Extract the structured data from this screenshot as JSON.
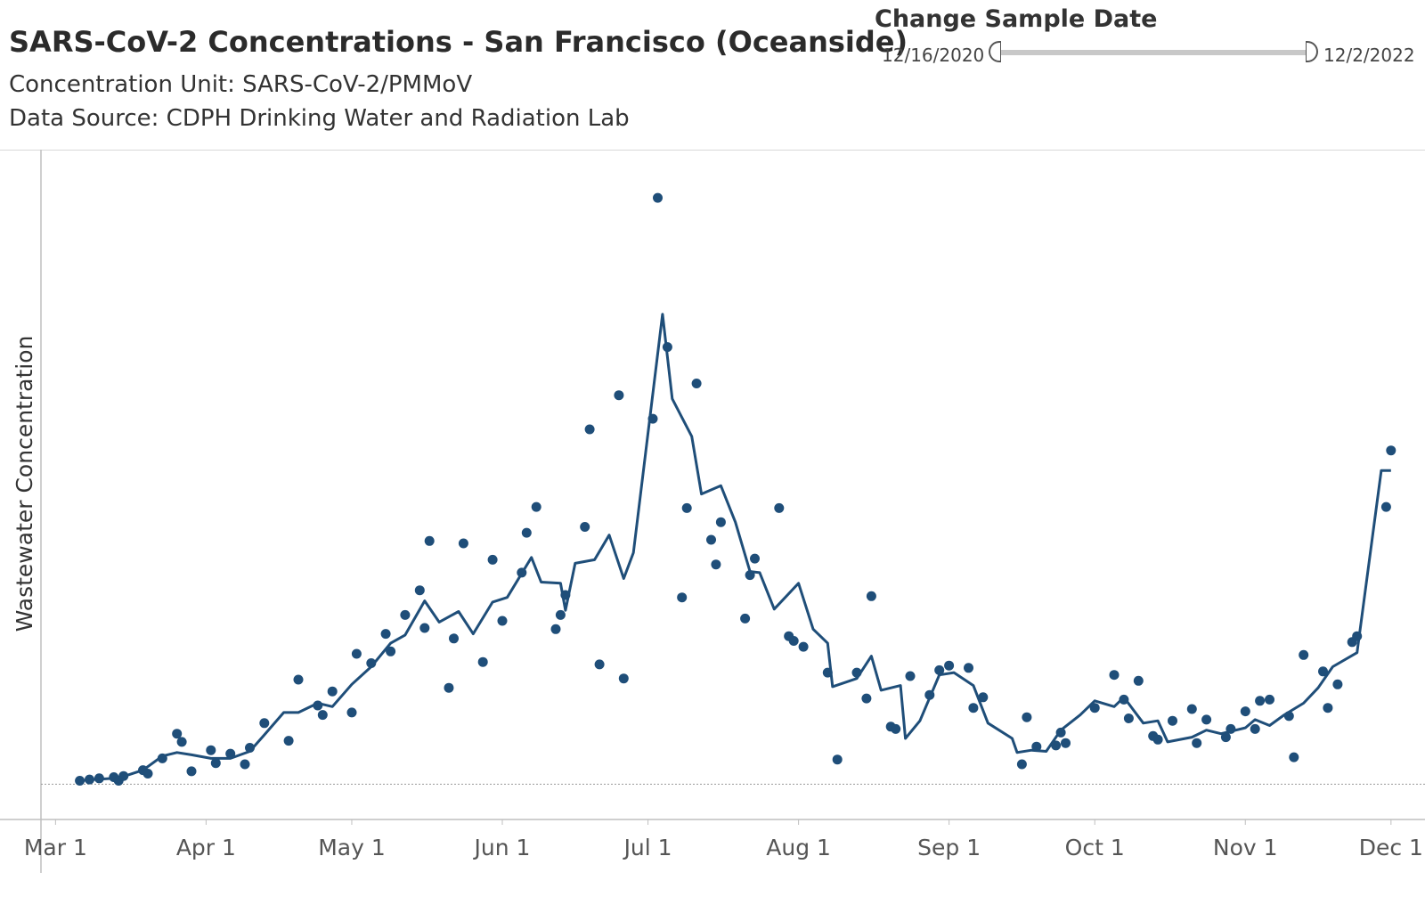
{
  "header": {
    "title": "SARS-CoV-2 Concentrations - San Francisco (Oceanside)",
    "concentration_unit": "Concentration Unit:  SARS-CoV-2/PMMoV",
    "data_source": "Data Source: CDPH Drinking Water and Radiation Lab"
  },
  "date_filter": {
    "label": "Change Sample Date",
    "start": "12/16/2020",
    "end": "12/2/2022"
  },
  "colors": {
    "series": "#1f4e79",
    "axis": "#bfbfbf",
    "baseline": "#9a9a9a"
  },
  "chart_data": {
    "type": "scatter",
    "title": "",
    "xlabel": "",
    "ylabel": "Wastewater Concentration",
    "x_ticks": [
      "Mar 1",
      "Apr 1",
      "May 1",
      "Jun 1",
      "Jul 1",
      "Aug 1",
      "Sep 1",
      "Oct 1",
      "Nov 1",
      "Dec 1"
    ],
    "x_tick_dates": [
      "2022-03-01",
      "2022-04-01",
      "2022-05-01",
      "2022-06-01",
      "2022-07-01",
      "2022-08-01",
      "2022-09-01",
      "2022-10-01",
      "2022-11-01",
      "2022-12-01"
    ],
    "xlim": [
      "2022-02-26",
      "2022-12-08"
    ],
    "ylim": [
      -0.03,
      0.54
    ],
    "y_tick_labels_shown": false,
    "grid": false,
    "series": [
      {
        "kind": "points",
        "points": [
          [
            "2022-03-06",
            0.003
          ],
          [
            "2022-03-08",
            0.004
          ],
          [
            "2022-03-10",
            0.005
          ],
          [
            "2022-03-13",
            0.006
          ],
          [
            "2022-03-14",
            0.003
          ],
          [
            "2022-03-15",
            0.007
          ],
          [
            "2022-03-19",
            0.012
          ],
          [
            "2022-03-20",
            0.009
          ],
          [
            "2022-03-23",
            0.022
          ],
          [
            "2022-03-26",
            0.043
          ],
          [
            "2022-03-27",
            0.036
          ],
          [
            "2022-03-29",
            0.011
          ],
          [
            "2022-04-02",
            0.029
          ],
          [
            "2022-04-03",
            0.018
          ],
          [
            "2022-04-06",
            0.026
          ],
          [
            "2022-04-09",
            0.017
          ],
          [
            "2022-04-10",
            0.031
          ],
          [
            "2022-04-13",
            0.052
          ],
          [
            "2022-04-18",
            0.037
          ],
          [
            "2022-04-20",
            0.089
          ],
          [
            "2022-04-24",
            0.067
          ],
          [
            "2022-04-25",
            0.059
          ],
          [
            "2022-04-27",
            0.079
          ],
          [
            "2022-05-01",
            0.061
          ],
          [
            "2022-05-02",
            0.111
          ],
          [
            "2022-05-05",
            0.103
          ],
          [
            "2022-05-08",
            0.128
          ],
          [
            "2022-05-09",
            0.113
          ],
          [
            "2022-05-12",
            0.144
          ],
          [
            "2022-05-15",
            0.165
          ],
          [
            "2022-05-16",
            0.133
          ],
          [
            "2022-05-17",
            0.207
          ],
          [
            "2022-05-21",
            0.082
          ],
          [
            "2022-05-22",
            0.124
          ],
          [
            "2022-05-24",
            0.205
          ],
          [
            "2022-05-28",
            0.104
          ],
          [
            "2022-05-30",
            0.191
          ],
          [
            "2022-06-01",
            0.139
          ],
          [
            "2022-06-05",
            0.18
          ],
          [
            "2022-06-06",
            0.214
          ],
          [
            "2022-06-08",
            0.236
          ],
          [
            "2022-06-12",
            0.132
          ],
          [
            "2022-06-13",
            0.144
          ],
          [
            "2022-06-14",
            0.161
          ],
          [
            "2022-06-18",
            0.219
          ],
          [
            "2022-06-19",
            0.302
          ],
          [
            "2022-06-21",
            0.102
          ],
          [
            "2022-06-25",
            0.331
          ],
          [
            "2022-06-26",
            0.09
          ],
          [
            "2022-07-02",
            0.311
          ],
          [
            "2022-07-03",
            0.499
          ],
          [
            "2022-07-05",
            0.372
          ],
          [
            "2022-07-08",
            0.159
          ],
          [
            "2022-07-09",
            0.235
          ],
          [
            "2022-07-11",
            0.341
          ],
          [
            "2022-07-14",
            0.208
          ],
          [
            "2022-07-15",
            0.187
          ],
          [
            "2022-07-16",
            0.223
          ],
          [
            "2022-07-21",
            0.141
          ],
          [
            "2022-07-22",
            0.178
          ],
          [
            "2022-07-23",
            0.192
          ],
          [
            "2022-07-28",
            0.235
          ],
          [
            "2022-07-30",
            0.126
          ],
          [
            "2022-07-31",
            0.122
          ],
          [
            "2022-08-02",
            0.117
          ],
          [
            "2022-08-07",
            0.095
          ],
          [
            "2022-08-09",
            0.021
          ],
          [
            "2022-08-13",
            0.095
          ],
          [
            "2022-08-15",
            0.073
          ],
          [
            "2022-08-16",
            0.16
          ],
          [
            "2022-08-20",
            0.049
          ],
          [
            "2022-08-21",
            0.047
          ],
          [
            "2022-08-24",
            0.092
          ],
          [
            "2022-08-28",
            0.076
          ],
          [
            "2022-08-30",
            0.097
          ],
          [
            "2022-09-01",
            0.101
          ],
          [
            "2022-09-05",
            0.099
          ],
          [
            "2022-09-06",
            0.065
          ],
          [
            "2022-09-08",
            0.074
          ],
          [
            "2022-09-16",
            0.017
          ],
          [
            "2022-09-17",
            0.057
          ],
          [
            "2022-09-19",
            0.032
          ],
          [
            "2022-09-23",
            0.033
          ],
          [
            "2022-09-24",
            0.044
          ],
          [
            "2022-09-25",
            0.035
          ],
          [
            "2022-10-01",
            0.065
          ],
          [
            "2022-10-05",
            0.093
          ],
          [
            "2022-10-07",
            0.072
          ],
          [
            "2022-10-08",
            0.056
          ],
          [
            "2022-10-10",
            0.088
          ],
          [
            "2022-10-13",
            0.041
          ],
          [
            "2022-10-14",
            0.038
          ],
          [
            "2022-10-17",
            0.054
          ],
          [
            "2022-10-21",
            0.064
          ],
          [
            "2022-10-22",
            0.035
          ],
          [
            "2022-10-24",
            0.055
          ],
          [
            "2022-10-28",
            0.04
          ],
          [
            "2022-10-29",
            0.047
          ],
          [
            "2022-11-01",
            0.062
          ],
          [
            "2022-11-03",
            0.047
          ],
          [
            "2022-11-04",
            0.071
          ],
          [
            "2022-11-06",
            0.072
          ],
          [
            "2022-11-10",
            0.058
          ],
          [
            "2022-11-11",
            0.023
          ],
          [
            "2022-11-13",
            0.11
          ],
          [
            "2022-11-17",
            0.096
          ],
          [
            "2022-11-18",
            0.065
          ],
          [
            "2022-11-20",
            0.085
          ],
          [
            "2022-11-23",
            0.121
          ],
          [
            "2022-11-24",
            0.126
          ],
          [
            "2022-11-30",
            0.236
          ],
          [
            "2022-12-01",
            0.284
          ]
        ]
      },
      {
        "kind": "line",
        "points": [
          [
            "2022-03-06",
            0.003
          ],
          [
            "2022-03-09",
            0.004
          ],
          [
            "2022-03-13",
            0.005
          ],
          [
            "2022-03-16",
            0.008
          ],
          [
            "2022-03-19",
            0.012
          ],
          [
            "2022-03-23",
            0.024
          ],
          [
            "2022-03-26",
            0.027
          ],
          [
            "2022-03-29",
            0.025
          ],
          [
            "2022-04-02",
            0.022
          ],
          [
            "2022-04-06",
            0.022
          ],
          [
            "2022-04-10",
            0.028
          ],
          [
            "2022-04-13",
            0.042
          ],
          [
            "2022-04-17",
            0.061
          ],
          [
            "2022-04-20",
            0.061
          ],
          [
            "2022-04-24",
            0.069
          ],
          [
            "2022-04-27",
            0.066
          ],
          [
            "2022-05-01",
            0.085
          ],
          [
            "2022-05-05",
            0.1
          ],
          [
            "2022-05-09",
            0.12
          ],
          [
            "2022-05-12",
            0.127
          ],
          [
            "2022-05-16",
            0.156
          ],
          [
            "2022-05-19",
            0.138
          ],
          [
            "2022-05-23",
            0.147
          ],
          [
            "2022-05-26",
            0.128
          ],
          [
            "2022-05-30",
            0.155
          ],
          [
            "2022-06-02",
            0.159
          ],
          [
            "2022-06-07",
            0.193
          ],
          [
            "2022-06-09",
            0.172
          ],
          [
            "2022-06-13",
            0.171
          ],
          [
            "2022-06-14",
            0.148
          ],
          [
            "2022-06-16",
            0.188
          ],
          [
            "2022-06-20",
            0.191
          ],
          [
            "2022-06-23",
            0.212
          ],
          [
            "2022-06-26",
            0.175
          ],
          [
            "2022-06-28",
            0.197
          ],
          [
            "2022-07-04",
            0.4
          ],
          [
            "2022-07-06",
            0.328
          ],
          [
            "2022-07-10",
            0.296
          ],
          [
            "2022-07-12",
            0.247
          ],
          [
            "2022-07-16",
            0.254
          ],
          [
            "2022-07-19",
            0.223
          ],
          [
            "2022-07-22",
            0.181
          ],
          [
            "2022-07-24",
            0.18
          ],
          [
            "2022-07-27",
            0.149
          ],
          [
            "2022-08-01",
            0.171
          ],
          [
            "2022-08-04",
            0.132
          ],
          [
            "2022-08-07",
            0.12
          ],
          [
            "2022-08-08",
            0.083
          ],
          [
            "2022-08-13",
            0.09
          ],
          [
            "2022-08-16",
            0.109
          ],
          [
            "2022-08-18",
            0.08
          ],
          [
            "2022-08-22",
            0.084
          ],
          [
            "2022-08-23",
            0.039
          ],
          [
            "2022-08-26",
            0.054
          ],
          [
            "2022-08-30",
            0.093
          ],
          [
            "2022-09-02",
            0.095
          ],
          [
            "2022-09-06",
            0.084
          ],
          [
            "2022-09-09",
            0.052
          ],
          [
            "2022-09-14",
            0.039
          ],
          [
            "2022-09-15",
            0.027
          ],
          [
            "2022-09-18",
            0.029
          ],
          [
            "2022-09-21",
            0.028
          ],
          [
            "2022-09-24",
            0.046
          ],
          [
            "2022-09-28",
            0.059
          ],
          [
            "2022-10-01",
            0.071
          ],
          [
            "2022-10-05",
            0.066
          ],
          [
            "2022-10-07",
            0.074
          ],
          [
            "2022-10-11",
            0.052
          ],
          [
            "2022-10-14",
            0.054
          ],
          [
            "2022-10-16",
            0.036
          ],
          [
            "2022-10-21",
            0.04
          ],
          [
            "2022-10-24",
            0.046
          ],
          [
            "2022-10-27",
            0.043
          ],
          [
            "2022-11-01",
            0.048
          ],
          [
            "2022-11-03",
            0.055
          ],
          [
            "2022-11-06",
            0.05
          ],
          [
            "2022-11-09",
            0.059
          ],
          [
            "2022-11-13",
            0.069
          ],
          [
            "2022-11-16",
            0.082
          ],
          [
            "2022-11-19",
            0.1
          ],
          [
            "2022-11-24",
            0.112
          ],
          [
            "2022-11-29",
            0.267
          ],
          [
            "2022-12-01",
            0.267
          ]
        ]
      }
    ]
  }
}
